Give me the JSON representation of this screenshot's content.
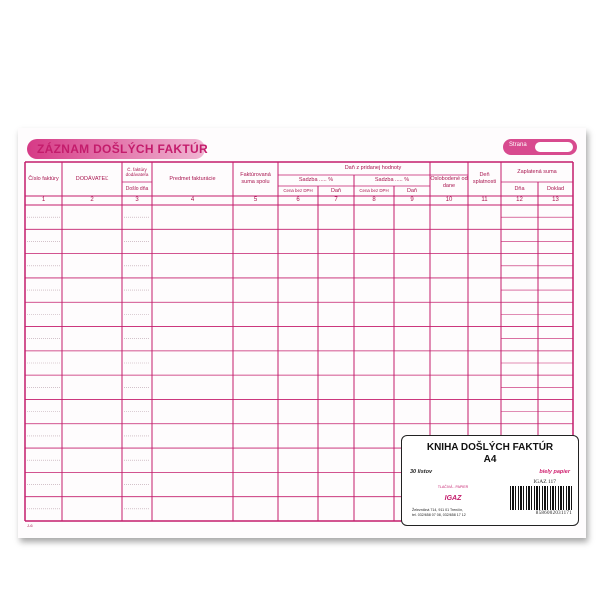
{
  "form": {
    "title": "ZÁZNAM DOŠLÝCH FAKTÚR",
    "page_label": "Strana",
    "footer_code": "J-6",
    "accent_color": "#c41c6c",
    "columns": [
      {
        "header": "Číslo faktúry",
        "number": "1"
      },
      {
        "header": "DODÁVATEĽ",
        "number": "2"
      },
      {
        "header": "Č. faktúry dodávateľa",
        "sub": "Došlo dňa",
        "number": "3"
      },
      {
        "header": "Predmet fakturácie",
        "number": "4"
      },
      {
        "header": "Faktúrovaná suma spolu",
        "number": "5"
      },
      {
        "header": "Cena bez DPH",
        "number": "6"
      },
      {
        "header": "Daň",
        "number": "7"
      },
      {
        "header": "Cena bez DPH",
        "number": "8"
      },
      {
        "header": "Daň",
        "number": "9"
      },
      {
        "header": "Oslobodené od dane",
        "number": "10"
      },
      {
        "header": "Deň splatnosti",
        "number": "11"
      },
      {
        "header": "Dňa",
        "number": "12"
      },
      {
        "header": "Doklad",
        "number": "13"
      }
    ],
    "group_dph": "Daň z pridanej hodnoty",
    "sadzba_1": "Sadzba ..... %",
    "sadzba_2": "Sadzba ..... %",
    "group_paid": "Zaplatená suma"
  },
  "label": {
    "title": "KNIHA DOŠLÝCH FAKTÚR",
    "format": "A4",
    "sheets": "30 listov",
    "paper": "biely papier",
    "product_code": "IGAZ 117",
    "brand": "IGAZ",
    "brand_arc": "TLAČIVÁ - PAPIER",
    "address_1": "Železničná 714, 911 01 Trenčín,",
    "address_2": "tel. 032/658 07 08, 032/658 17 12",
    "barcode": "8586002031171"
  }
}
